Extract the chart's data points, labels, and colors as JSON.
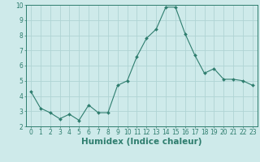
{
  "x": [
    0,
    1,
    2,
    3,
    4,
    5,
    6,
    7,
    8,
    9,
    10,
    11,
    12,
    13,
    14,
    15,
    16,
    17,
    18,
    19,
    20,
    21,
    22,
    23
  ],
  "y": [
    4.3,
    3.2,
    2.9,
    2.5,
    2.8,
    2.4,
    3.4,
    2.9,
    2.9,
    4.7,
    5.0,
    6.6,
    7.8,
    8.4,
    9.85,
    9.85,
    8.1,
    6.7,
    5.5,
    5.8,
    5.1,
    5.1,
    5.0,
    4.7
  ],
  "line_color": "#2e7d6e",
  "marker": "D",
  "marker_size": 2.0,
  "bg_color": "#ceeaea",
  "grid_color": "#afd4d4",
  "xlabel": "Humidex (Indice chaleur)",
  "xlim": [
    -0.5,
    23.5
  ],
  "ylim": [
    2,
    10
  ],
  "yticks": [
    2,
    3,
    4,
    5,
    6,
    7,
    8,
    9,
    10
  ],
  "xticks": [
    0,
    1,
    2,
    3,
    4,
    5,
    6,
    7,
    8,
    9,
    10,
    11,
    12,
    13,
    14,
    15,
    16,
    17,
    18,
    19,
    20,
    21,
    22,
    23
  ],
  "tick_fontsize": 5.5,
  "xlabel_fontsize": 7.5,
  "linewidth": 0.8
}
